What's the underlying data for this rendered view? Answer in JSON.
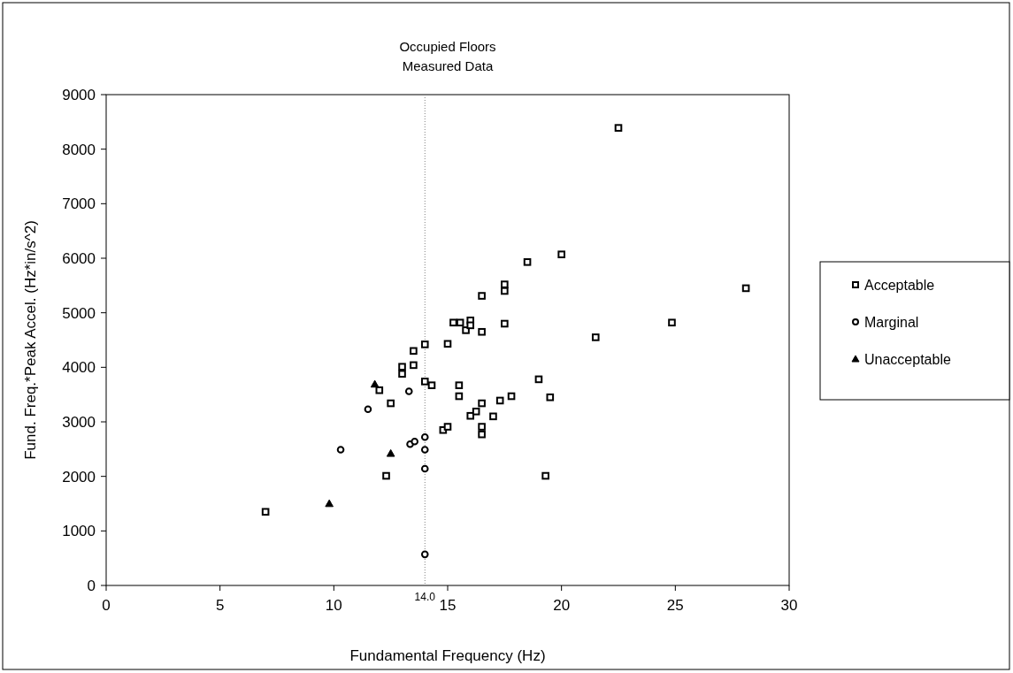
{
  "chart_data": {
    "type": "scatter",
    "title": "Occupied Floors",
    "subtitle": "Measured Data",
    "xlabel": "Fundamental Frequency (Hz)",
    "ylabel": "Fund. Freq.*Peak Accel. (Hz*in/s^2)",
    "xlim": [
      0,
      30
    ],
    "xticks": [
      0,
      5,
      10,
      15,
      20,
      25,
      30
    ],
    "ylim": [
      0,
      9000
    ],
    "yticks": [
      0,
      1000,
      2000,
      3000,
      4000,
      5000,
      6000,
      7000,
      8000,
      9000
    ],
    "grid": false,
    "legend": "right",
    "ref_lines": [
      {
        "axis": "x",
        "value": 14,
        "label": "14.0",
        "line_style": "dotted",
        "color": "#808080"
      }
    ],
    "series": [
      {
        "name": "Acceptable",
        "color": "#000000",
        "marker": "square",
        "x": [
          7.0,
          12.3,
          12.5,
          12.0,
          13.0,
          13.0,
          13.5,
          13.5,
          14.0,
          14.0,
          14.3,
          14.8,
          15.0,
          15.0,
          15.25,
          15.55,
          15.5,
          15.5,
          15.8,
          16.0,
          16.0,
          16.0,
          16.25,
          16.5,
          16.5,
          16.5,
          16.5,
          16.5,
          17.0,
          17.3,
          17.5,
          17.5,
          17.5,
          17.8,
          18.5,
          19.0,
          19.3,
          19.5,
          20.0,
          21.5,
          22.5,
          24.85,
          28.1
        ],
        "values": [
          1350,
          2010,
          3340,
          3580,
          3880,
          4010,
          4040,
          4300,
          4420,
          3740,
          3670,
          2850,
          2910,
          4430,
          4820,
          4820,
          3670,
          3470,
          4680,
          4860,
          4770,
          3110,
          3190,
          5310,
          4650,
          3340,
          2910,
          2770,
          3100,
          3390,
          5520,
          5400,
          4800,
          3470,
          5930,
          3780,
          2010,
          3450,
          6070,
          4550,
          8390,
          4820,
          5450
        ]
      },
      {
        "name": "Marginal",
        "color": "#000000",
        "marker": "circle",
        "x": [
          10.3,
          11.5,
          13.3,
          13.35,
          13.55,
          14.0,
          14.0,
          14.0,
          14.0
        ],
        "values": [
          2490,
          3230,
          3560,
          2590,
          2640,
          2720,
          2490,
          2140,
          570
        ]
      },
      {
        "name": "Unacceptable",
        "color": "#000000",
        "marker": "triangle",
        "x": [
          9.8,
          11.8,
          12.5
        ],
        "values": [
          1500,
          3690,
          2420
        ]
      }
    ]
  }
}
